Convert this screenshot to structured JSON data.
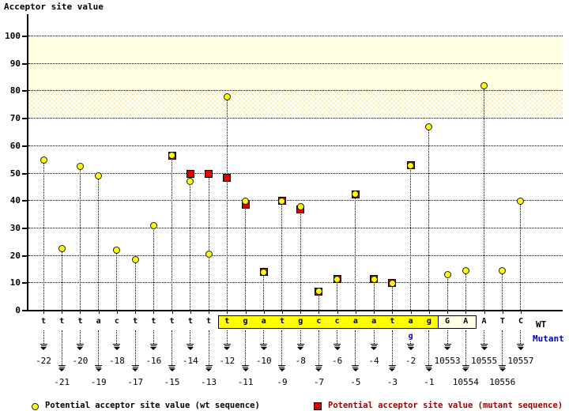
{
  "title": "Acceptor site value",
  "labels": {
    "wt": "WT",
    "mutant": "Mutant"
  },
  "legend": [
    {
      "marker": "yellow-circle",
      "label": "Potential acceptor site value (wt sequence)"
    },
    {
      "marker": "red-square",
      "label": "Potential acceptor site value (mutant sequence)"
    }
  ],
  "colors": {
    "wt_marker": "#ffff00",
    "mutant_marker": "#dd0000",
    "band_solid": "#ffffe1",
    "highlight_box": "#ffff00",
    "exon_box": "#ffffe6",
    "mutant_blue": "#0000cc",
    "legend_mutant_text": "#990000"
  },
  "sequence": {
    "highlight_range": [
      10,
      21
    ],
    "exon_box_range": [
      22,
      23
    ],
    "mutation": {
      "index": 20,
      "base": "g"
    }
  },
  "chart_data": {
    "type": "scatter",
    "title": "Acceptor site value",
    "ylabel": "Acceptor site value",
    "ylim": [
      0,
      105
    ],
    "y_ticks": [
      0,
      10,
      20,
      30,
      40,
      50,
      60,
      70,
      80,
      90,
      100
    ],
    "grid": "dotted-horizontal",
    "bands": [
      {
        "from": 81,
        "to": 99.7,
        "style": "solid"
      },
      {
        "from": 71,
        "to": 81,
        "style": "hatch"
      }
    ],
    "series_names": [
      "wt",
      "mutant"
    ],
    "points": [
      {
        "position": "-22",
        "base": "t",
        "row": "upper",
        "wt": 55,
        "mutant": null
      },
      {
        "position": "-21",
        "base": "t",
        "row": "lower",
        "wt": 22.5,
        "mutant": null
      },
      {
        "position": "-20",
        "base": "t",
        "row": "upper",
        "wt": 52.5,
        "mutant": null
      },
      {
        "position": "-19",
        "base": "a",
        "row": "lower",
        "wt": 49,
        "mutant": null
      },
      {
        "position": "-18",
        "base": "c",
        "row": "upper",
        "wt": 22,
        "mutant": null
      },
      {
        "position": "-17",
        "base": "t",
        "row": "lower",
        "wt": 18.5,
        "mutant": null
      },
      {
        "position": "-16",
        "base": "t",
        "row": "upper",
        "wt": 31,
        "mutant": null
      },
      {
        "position": "-15",
        "base": "t",
        "row": "lower",
        "wt": 56.5,
        "mutant": 56.5
      },
      {
        "position": "-14",
        "base": "t",
        "row": "upper",
        "wt": 47,
        "mutant": 50
      },
      {
        "position": "-13",
        "base": "t",
        "row": "lower",
        "wt": 20.5,
        "mutant": 50
      },
      {
        "position": "-12",
        "base": "t",
        "row": "upper",
        "wt": 78,
        "mutant": 48.5
      },
      {
        "position": "-11",
        "base": "g",
        "row": "lower",
        "wt": 40,
        "mutant": 38.5
      },
      {
        "position": "-10",
        "base": "a",
        "row": "upper",
        "wt": 14,
        "mutant": 14
      },
      {
        "position": "-9",
        "base": "t",
        "row": "lower",
        "wt": 40,
        "mutant": 40
      },
      {
        "position": "-8",
        "base": "g",
        "row": "upper",
        "wt": 38,
        "mutant": 37
      },
      {
        "position": "-7",
        "base": "c",
        "row": "lower",
        "wt": 7,
        "mutant": 7
      },
      {
        "position": "-6",
        "base": "c",
        "row": "upper",
        "wt": 11.5,
        "mutant": 11.5
      },
      {
        "position": "-5",
        "base": "a",
        "row": "lower",
        "wt": 42.5,
        "mutant": 42.5
      },
      {
        "position": "-4",
        "base": "a",
        "row": "upper",
        "wt": 11.5,
        "mutant": 11.5
      },
      {
        "position": "-3",
        "base": "t",
        "row": "lower",
        "wt": 10,
        "mutant": 10
      },
      {
        "position": "-2",
        "base": "a",
        "row": "upper",
        "wt": 53,
        "mutant": 53
      },
      {
        "position": "-1",
        "base": "g",
        "row": "lower",
        "wt": 67,
        "mutant": null
      },
      {
        "position": "10553",
        "base": "G",
        "row": "upper",
        "wt": 13,
        "mutant": null
      },
      {
        "position": "10554",
        "base": "A",
        "row": "lower",
        "wt": 14.5,
        "mutant": null
      },
      {
        "position": "10555",
        "base": "A",
        "row": "upper",
        "wt": 82,
        "mutant": null
      },
      {
        "position": "10556",
        "base": "T",
        "row": "lower",
        "wt": 14.5,
        "mutant": null
      },
      {
        "position": "10557",
        "base": "C",
        "row": "upper",
        "wt": 40,
        "mutant": null
      }
    ]
  }
}
